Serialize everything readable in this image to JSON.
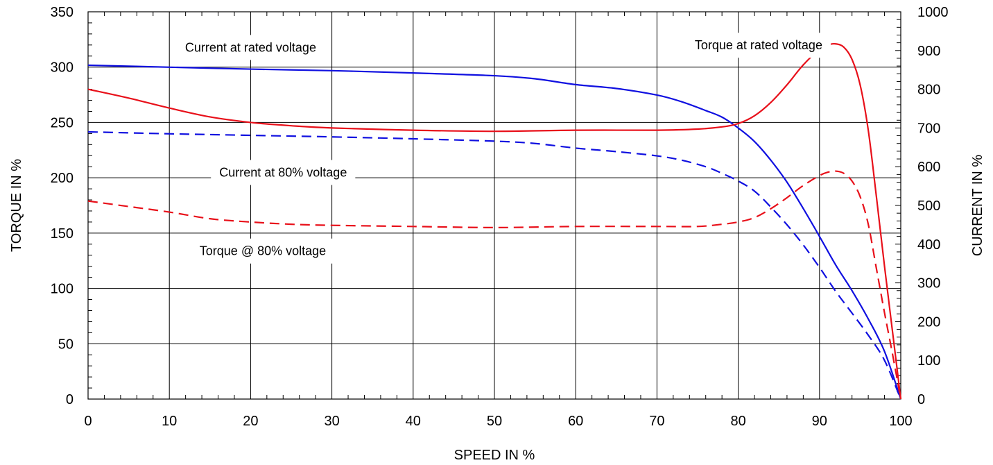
{
  "chart_data": {
    "type": "line",
    "title": "",
    "xlabel": "SPEED IN %",
    "ylabel": "TORQUE IN %",
    "y2label": "CURRENT IN %",
    "xlim": [
      0,
      100
    ],
    "ylim": [
      0,
      350
    ],
    "y2lim": [
      0,
      1000
    ],
    "grid": true,
    "legend": "none",
    "x_ticks": [
      0,
      10,
      20,
      30,
      40,
      50,
      60,
      70,
      80,
      90,
      100
    ],
    "y_ticks": [
      0,
      50,
      100,
      150,
      200,
      250,
      300,
      350
    ],
    "y2_ticks": [
      0,
      100,
      200,
      300,
      400,
      500,
      600,
      700,
      800,
      900,
      1000
    ],
    "colors": {
      "torque": "#e8101a",
      "current": "#1010e0"
    },
    "series": [
      {
        "axis": "right",
        "color": "current",
        "dash": false,
        "x": [
          0,
          10,
          20,
          30,
          40,
          50,
          55,
          60,
          65,
          70,
          73,
          76,
          78,
          80,
          82,
          84,
          86,
          88,
          90,
          92,
          94,
          96,
          98,
          100
        ],
        "y": [
          862,
          857,
          852,
          848,
          842,
          835,
          827,
          812,
          802,
          785,
          768,
          745,
          728,
          700,
          665,
          617,
          560,
          492,
          420,
          346,
          280,
          207,
          123,
          0
        ]
      },
      {
        "axis": "right",
        "color": "current",
        "dash": true,
        "x": [
          0,
          10,
          20,
          30,
          40,
          50,
          55,
          60,
          65,
          70,
          73,
          76,
          78,
          80,
          82,
          84,
          86,
          88,
          90,
          92,
          94,
          96,
          98,
          100
        ],
        "y": [
          690,
          685,
          681,
          677,
          672,
          666,
          660,
          648,
          639,
          628,
          617,
          600,
          583,
          563,
          537,
          496,
          450,
          398,
          340,
          278,
          222,
          165,
          100,
          0
        ]
      },
      {
        "axis": "left",
        "color": "torque",
        "dash": false,
        "x": [
          0,
          5,
          10,
          15,
          20,
          25,
          30,
          40,
          50,
          60,
          70,
          75,
          78,
          80,
          82,
          84,
          86,
          88,
          90,
          91,
          92,
          93,
          94,
          95,
          96,
          97,
          98,
          99,
          100
        ],
        "y": [
          280,
          272,
          263,
          255,
          250,
          247,
          245,
          243,
          242,
          243,
          243,
          244,
          246,
          249,
          256,
          268,
          284,
          302,
          316,
          320,
          321,
          318,
          307,
          284,
          243,
          183,
          120,
          60,
          0
        ]
      },
      {
        "axis": "left",
        "color": "torque",
        "dash": true,
        "x": [
          0,
          5,
          10,
          15,
          20,
          25,
          30,
          40,
          50,
          60,
          70,
          75,
          78,
          80,
          82,
          84,
          86,
          88,
          90,
          91,
          92,
          93,
          94,
          95,
          96,
          97,
          98,
          99,
          100
        ],
        "y": [
          179,
          174,
          169,
          163,
          160,
          158,
          157,
          156,
          155,
          156,
          156,
          156,
          158,
          160,
          164,
          172,
          182,
          193,
          202,
          205,
          206,
          204,
          197,
          183,
          158,
          118,
          78,
          40,
          0
        ]
      }
    ],
    "annotations": [
      {
        "text": "Current at rated voltage",
        "x": 20,
        "y": 314
      },
      {
        "text": "Torque at rated voltage",
        "x": 82.5,
        "y": 316
      },
      {
        "text": "Current at 80% voltage",
        "x": 24,
        "y": 201
      },
      {
        "text": "Torque @ 80% voltage",
        "x": 21.5,
        "y": 130
      }
    ]
  }
}
